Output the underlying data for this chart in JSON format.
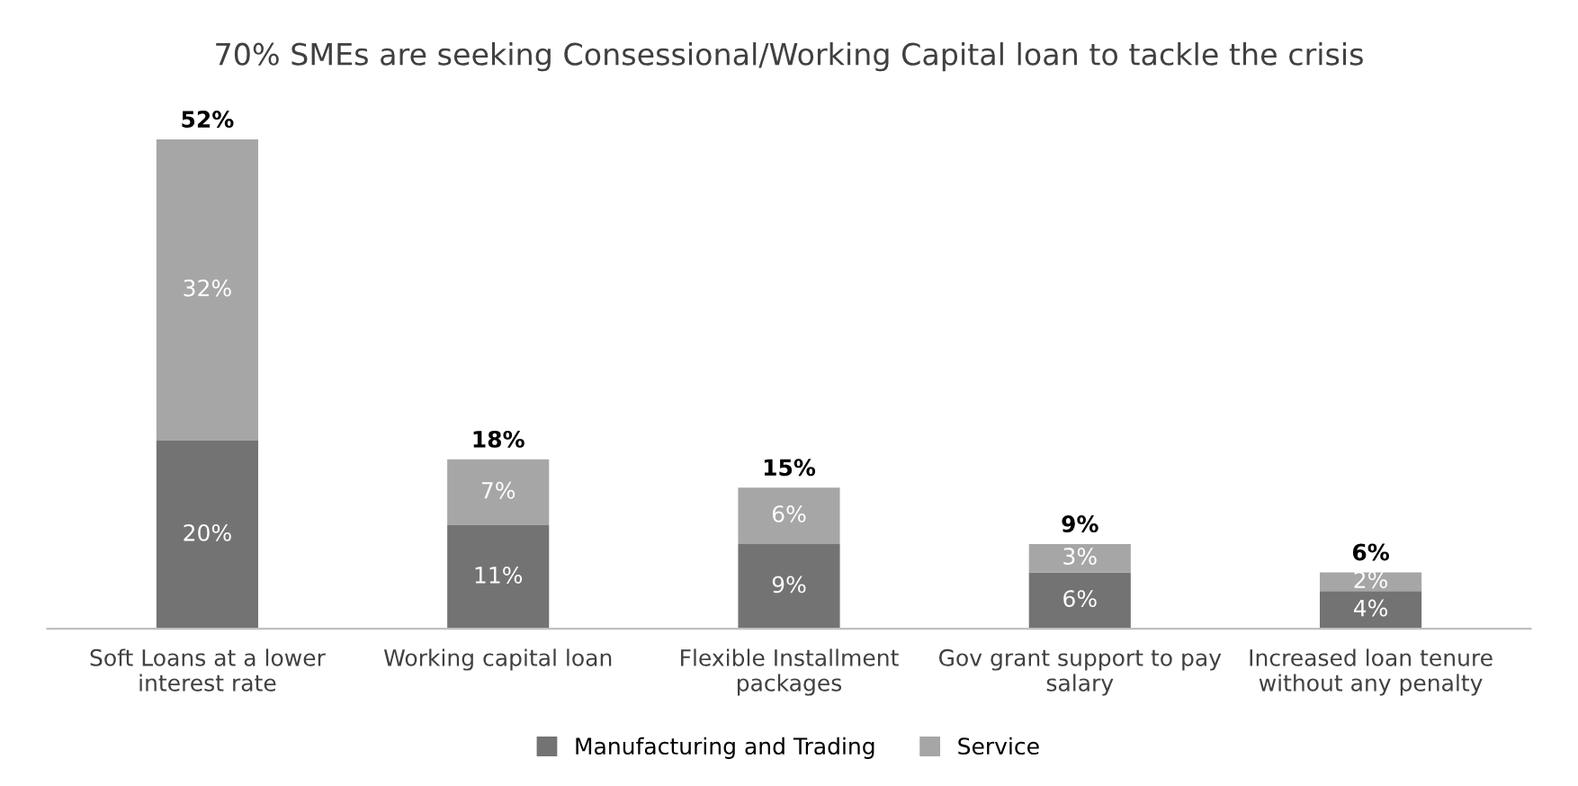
{
  "chart_data": {
    "type": "bar",
    "title": "70% SMEs are seeking Consessional/Working Capital loan to tackle the crisis",
    "categories": [
      "Soft Loans at a lower\ninterest rate",
      "Working capital loan",
      "Flexible Installment\npackages",
      "Gov grant support to pay\nsalary",
      "Increased loan tenure\nwithout any penalty"
    ],
    "stacked": true,
    "series": [
      {
        "name": "Manufacturing and Trading",
        "color": "#737373",
        "values": [
          20,
          11,
          9,
          6,
          4
        ],
        "value_labels": [
          "20%",
          "11%",
          "9%",
          "6%",
          "4%"
        ]
      },
      {
        "name": "Service",
        "color": "#a6a6a6",
        "values": [
          32,
          7,
          6,
          3,
          2
        ],
        "value_labels": [
          "32%",
          "7%",
          "6%",
          "3%",
          "2%"
        ]
      }
    ],
    "totals": [
      "52%",
      "18%",
      "15%",
      "9%",
      "6%"
    ],
    "legend": "bottom"
  }
}
